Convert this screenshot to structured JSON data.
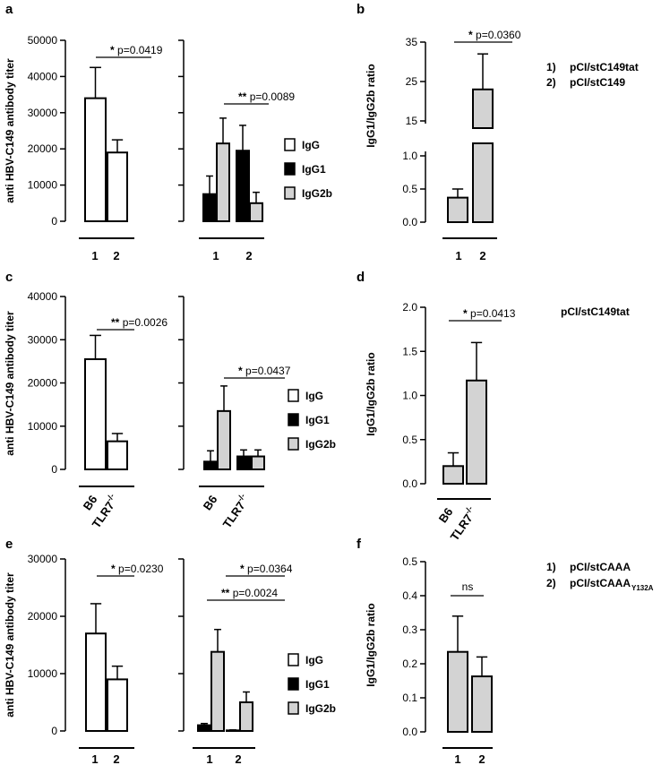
{
  "colors": {
    "IgG": "#ffffff",
    "IgG1": "#000000",
    "IgG2b": "#d3d3d3",
    "stroke": "#000000"
  },
  "legend": {
    "igg": "IgG",
    "igg1": "IgG1",
    "igg2b": "IgG2b"
  },
  "notes": {
    "b1_num": "1)",
    "b1_text": "pCI/stC149tat",
    "b2_num": "2)",
    "b2_text": "pCI/stC149",
    "d_text": "pCI/stC149tat",
    "f1_num": "1)",
    "f1_text": "pCI/stCAAA",
    "f2_num": "2)",
    "f2_text": "pCI/stCAAA",
    "f2_sub": "Y132A"
  },
  "chart_data": [
    {
      "panel": "a",
      "type": "bar",
      "ylabel": "anti HBV-C149 antibody titer",
      "ylim": [
        0,
        50000
      ],
      "yticks": [
        0,
        10000,
        20000,
        30000,
        40000,
        50000
      ],
      "categories": [
        "1",
        "2"
      ],
      "series": [
        {
          "name": "IgG",
          "values": [
            34000,
            19000
          ],
          "errors": [
            8500,
            3500
          ]
        }
      ],
      "annotations": [
        {
          "stars": "*",
          "text": "p=0.0419"
        }
      ]
    },
    {
      "panel": "a-subclass",
      "type": "bar",
      "ylim": [
        0,
        50000
      ],
      "categories": [
        "1",
        "2"
      ],
      "series": [
        {
          "name": "IgG1",
          "values": [
            7500,
            19500
          ],
          "errors": [
            5000,
            7000
          ]
        },
        {
          "name": "IgG2b",
          "values": [
            21500,
            5000
          ],
          "errors": [
            7000,
            3000
          ]
        }
      ],
      "annotations": [
        {
          "stars": "**",
          "text": "p=0.0089"
        }
      ]
    },
    {
      "panel": "b",
      "type": "bar",
      "ylabel": "IgG1/IgG2b ratio",
      "axis": "broken",
      "yticks_lower": [
        "0.0",
        "0.5",
        "1.0"
      ],
      "yticks_upper": [
        "15",
        "25",
        "35"
      ],
      "categories": [
        "1",
        "2"
      ],
      "values": [
        0.37,
        23
      ],
      "errors": [
        0.13,
        9
      ],
      "annotations": [
        {
          "stars": "*",
          "text": "p=0.0360"
        }
      ]
    },
    {
      "panel": "c",
      "type": "bar",
      "ylabel": "anti HBV-C149 antibody titer",
      "ylim": [
        0,
        40000
      ],
      "yticks": [
        0,
        10000,
        20000,
        30000,
        40000
      ],
      "categories": [
        "B6",
        "TLR7"
      ],
      "cat_sup": [
        "",
        "-/-"
      ],
      "series": [
        {
          "name": "IgG",
          "values": [
            25500,
            6500
          ],
          "errors": [
            5500,
            1800
          ]
        }
      ],
      "annotations": [
        {
          "stars": "**",
          "text": "p=0.0026"
        }
      ]
    },
    {
      "panel": "c-subclass",
      "type": "bar",
      "ylim": [
        0,
        40000
      ],
      "categories": [
        "B6",
        "TLR7"
      ],
      "cat_sup": [
        "",
        "-/-"
      ],
      "series": [
        {
          "name": "IgG1",
          "values": [
            1800,
            3000
          ],
          "errors": [
            2500,
            1500
          ]
        },
        {
          "name": "IgG2b",
          "values": [
            13500,
            3000
          ],
          "errors": [
            5800,
            1500
          ]
        }
      ],
      "annotations": [
        {
          "stars": "*",
          "text": "p=0.0437"
        }
      ]
    },
    {
      "panel": "d",
      "type": "bar",
      "ylabel": "IgG1/IgG2b ratio",
      "ylim": [
        0,
        2.0
      ],
      "yticks": [
        "0.0",
        "0.5",
        "1.0",
        "1.5",
        "2.0"
      ],
      "categories": [
        "B6",
        "TLR7"
      ],
      "cat_sup": [
        "",
        "-/-"
      ],
      "values": [
        0.2,
        1.17
      ],
      "errors": [
        0.15,
        0.43
      ],
      "annotations": [
        {
          "stars": "*",
          "text": "p=0.0413"
        }
      ]
    },
    {
      "panel": "e",
      "type": "bar",
      "ylabel": "anti HBV-C149 antibody titer",
      "ylim": [
        0,
        30000
      ],
      "yticks": [
        0,
        10000,
        20000,
        30000
      ],
      "categories": [
        "1",
        "2"
      ],
      "series": [
        {
          "name": "IgG",
          "values": [
            17000,
            9000
          ],
          "errors": [
            5200,
            2300
          ]
        }
      ],
      "annotations": [
        {
          "stars": "*",
          "text": "p=0.0230"
        }
      ]
    },
    {
      "panel": "e-subclass",
      "type": "bar",
      "ylim": [
        0,
        30000
      ],
      "categories": [
        "1",
        "2"
      ],
      "series": [
        {
          "name": "IgG1",
          "values": [
            1000,
            100
          ],
          "errors": [
            300,
            80
          ]
        },
        {
          "name": "IgG2b",
          "values": [
            13800,
            5000
          ],
          "errors": [
            3900,
            1800
          ]
        }
      ],
      "annotations": [
        {
          "stars": "*",
          "text": "p=0.0364"
        },
        {
          "stars": "**",
          "text": "p=0.0024"
        }
      ]
    },
    {
      "panel": "f",
      "type": "bar",
      "ylabel": "IgG1/IgG2b ratio",
      "ylim": [
        0,
        0.5
      ],
      "yticks": [
        "0.0",
        "0.1",
        "0.2",
        "0.3",
        "0.4",
        "0.5"
      ],
      "categories": [
        "1",
        "2"
      ],
      "values": [
        0.235,
        0.163
      ],
      "errors": [
        0.105,
        0.057
      ],
      "annotations": [
        {
          "stars": "",
          "text": "ns"
        }
      ]
    }
  ]
}
